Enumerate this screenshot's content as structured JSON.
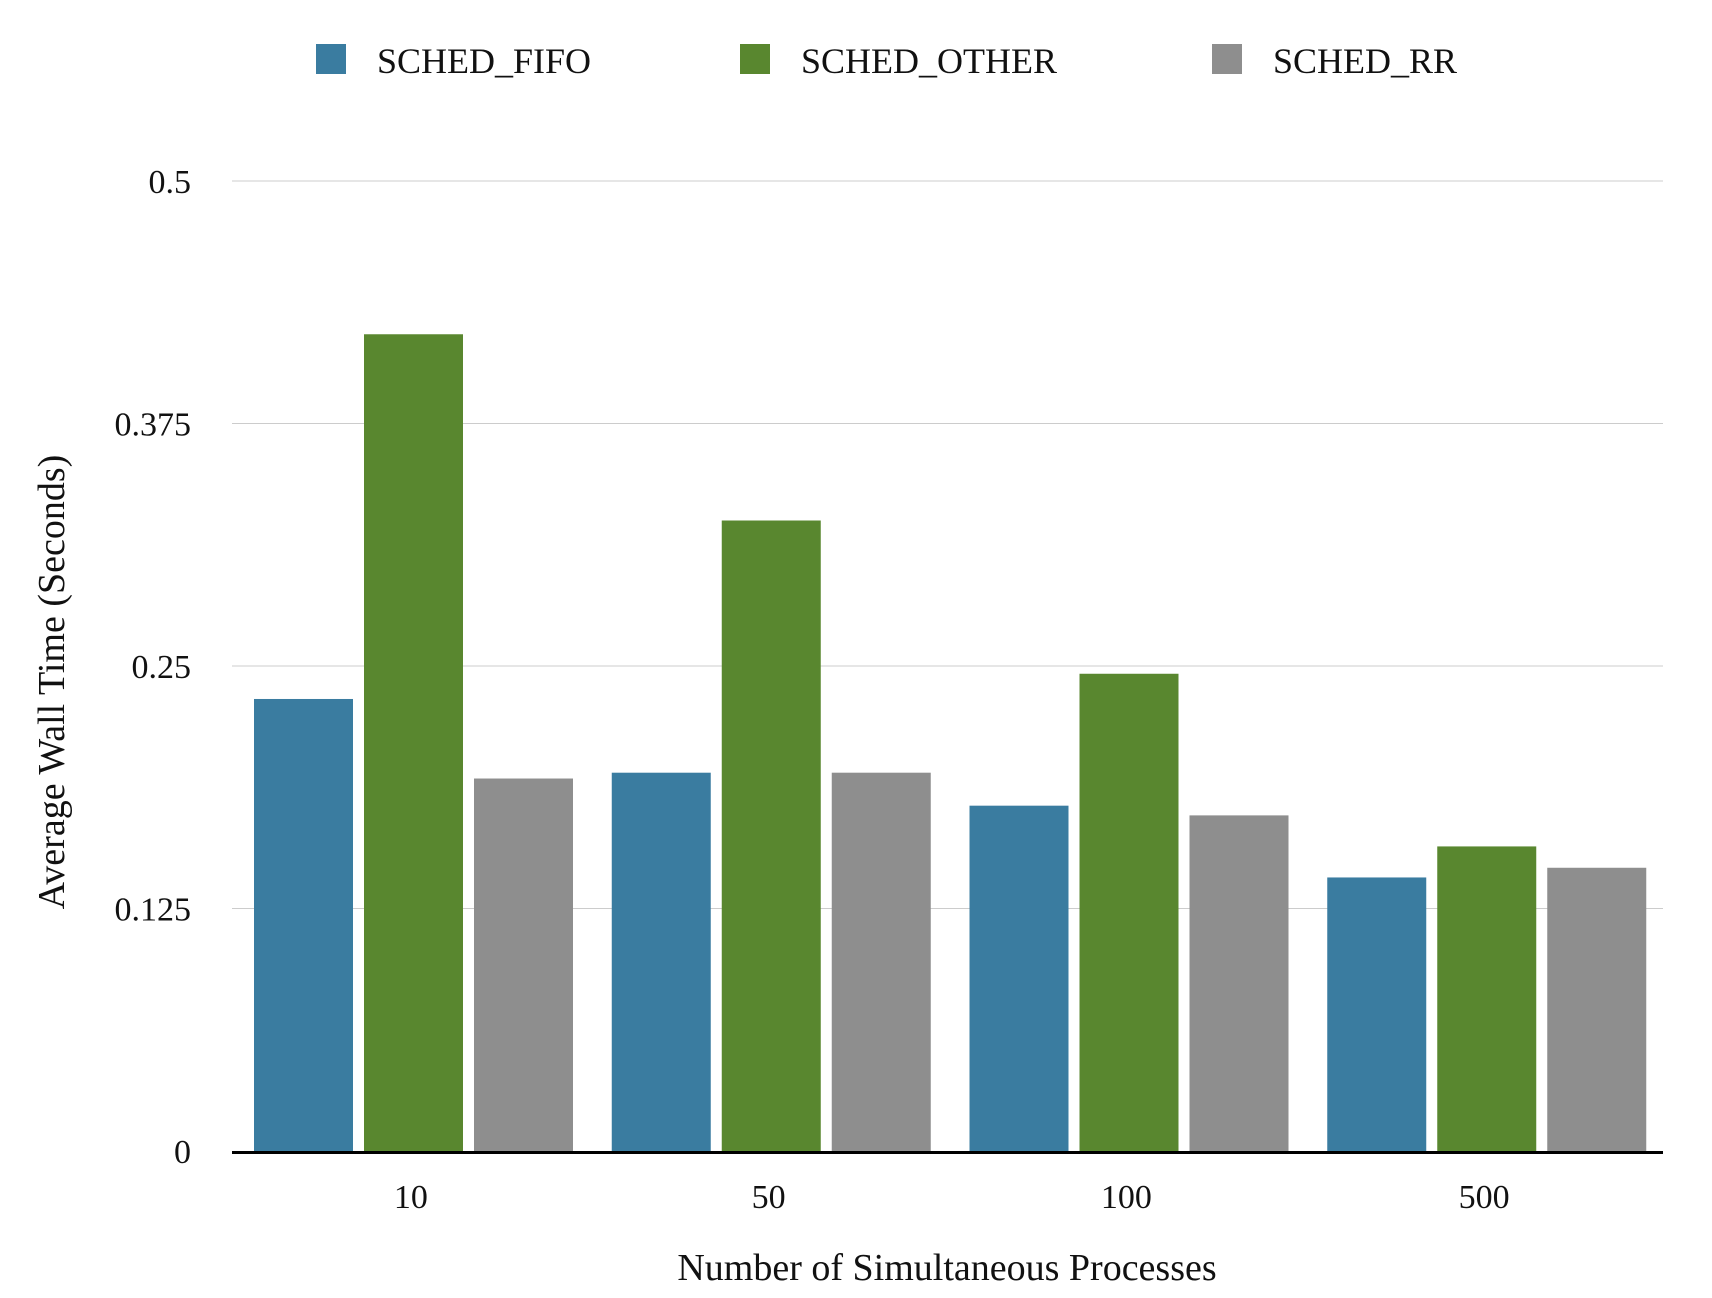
{
  "chart_data": {
    "type": "bar",
    "title": "",
    "xlabel": "Number of Simultaneous Processes",
    "ylabel": "Average Wall Time (Seconds)",
    "categories": [
      "10",
      "50",
      "100",
      "500"
    ],
    "series": [
      {
        "name": "SCHED_FIFO",
        "color": "#3a7ca0",
        "values": [
          0.233,
          0.195,
          0.178,
          0.141
        ]
      },
      {
        "name": "SCHED_OTHER",
        "color": "#59872f",
        "values": [
          0.421,
          0.325,
          0.246,
          0.157
        ]
      },
      {
        "name": "SCHED_RR",
        "color": "#8e8e8e",
        "values": [
          0.192,
          0.195,
          0.173,
          0.146
        ]
      }
    ],
    "ylim": [
      0,
      0.5
    ],
    "yticks": [
      0,
      0.125,
      0.25,
      0.375,
      0.5
    ],
    "ytick_labels": [
      "0",
      "0.125",
      "0.25",
      "0.375",
      "0.5"
    ],
    "grid": true,
    "legend_position": "top-center"
  }
}
